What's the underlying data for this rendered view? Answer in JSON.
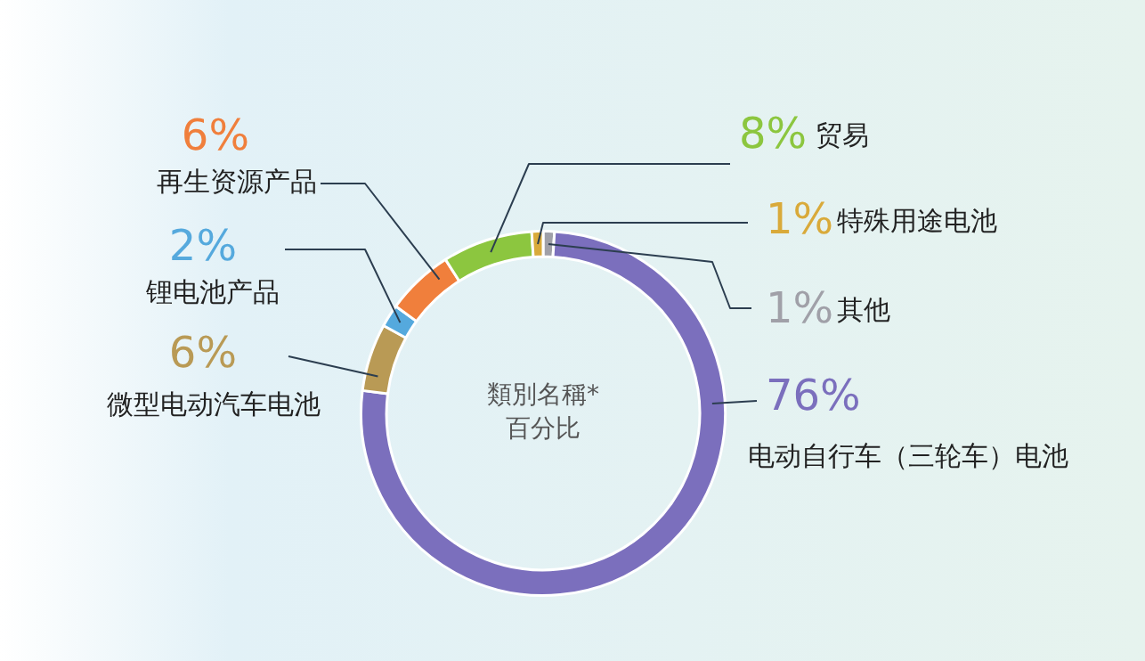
{
  "chart_data": {
    "type": "donut",
    "categories": [
      "其他",
      "电动自行车（三轮车）电池",
      "微型电动汽车电池",
      "锂电池产品",
      "再生资源产品",
      "贸易",
      "特殊用途电池"
    ],
    "values": [
      1,
      76,
      6,
      2,
      6,
      8,
      1
    ],
    "value_labels": [
      "1%",
      "76%",
      "6%",
      "2%",
      "6%",
      "8%",
      "1%"
    ],
    "colors": [
      "#a0a0a8",
      "#7b6fbd",
      "#b99a55",
      "#55a9dd",
      "#f07f3c",
      "#8cc63f",
      "#d9aa3a"
    ],
    "annotations": [
      "類別名稱*",
      "百分比"
    ],
    "legend": false
  }
}
